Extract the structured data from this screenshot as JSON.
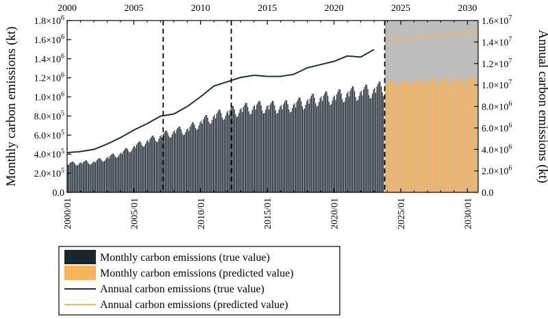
{
  "chart_data": {
    "type": "bar",
    "colors": {
      "monthly_true": "#1a2630",
      "monthly_predicted": "#f8b35a",
      "annual_true": "#16323d",
      "annual_predicted": "#f5b65b",
      "prediction_shade": "#bdbdbd",
      "event_lines": "#000000"
    },
    "top_axis": {
      "ticks": [
        "2000",
        "2005",
        "2010",
        "2015",
        "2020",
        "2025",
        "2030"
      ],
      "tick_values": [
        2000,
        2005,
        2010,
        2015,
        2020,
        2025,
        2030
      ],
      "range": [
        2000,
        2030.8
      ]
    },
    "bottom_axis": {
      "ticks": [
        "2000/01",
        "2005/01",
        "2010/01",
        "2015/01",
        "2020/01",
        "2025/01",
        "2030/01"
      ],
      "tick_values": [
        2000,
        2005,
        2010,
        2015,
        2020,
        2025,
        2030
      ],
      "range": [
        2000,
        2030.8
      ]
    },
    "left_axis": {
      "label": "Monthly carbon emissions (kt)",
      "range": [
        0,
        1800000
      ],
      "ticks": [
        {
          "value": 0,
          "label": "0.0"
        },
        {
          "value": 200000,
          "base": "2.0×10",
          "exp": "5"
        },
        {
          "value": 400000,
          "base": "4.0×10",
          "exp": "5"
        },
        {
          "value": 600000,
          "base": "6.0×10",
          "exp": "5"
        },
        {
          "value": 800000,
          "base": "8.0×10",
          "exp": "5"
        },
        {
          "value": 1000000,
          "base": "1.0×10",
          "exp": "6"
        },
        {
          "value": 1200000,
          "base": "1.2×10",
          "exp": "6"
        },
        {
          "value": 1400000,
          "base": "1.4×10",
          "exp": "6"
        },
        {
          "value": 1600000,
          "base": "1.6×10",
          "exp": "6"
        },
        {
          "value": 1800000,
          "base": "1.8×10",
          "exp": "6"
        }
      ]
    },
    "right_axis": {
      "label": "Annual carbon emissions (kt)",
      "range": [
        0,
        16000000
      ],
      "ticks": [
        {
          "value": 0,
          "label": "0.0"
        },
        {
          "value": 2000000,
          "base": "2.0×10",
          "exp": "6"
        },
        {
          "value": 4000000,
          "base": "4.0×10",
          "exp": "6"
        },
        {
          "value": 6000000,
          "base": "6.0×10",
          "exp": "6"
        },
        {
          "value": 8000000,
          "base": "8.0×10",
          "exp": "6"
        },
        {
          "value": 10000000,
          "base": "1.0×10",
          "exp": "7"
        },
        {
          "value": 12000000,
          "base": "1.2×10",
          "exp": "7"
        },
        {
          "value": 14000000,
          "base": "1.4×10",
          "exp": "7"
        },
        {
          "value": 16000000,
          "base": "1.6×10",
          "exp": "7"
        }
      ]
    },
    "event_lines_x": [
      2007.2,
      2012.3,
      2023.8
    ],
    "prediction_start": 2023.8,
    "monthly_true": {
      "start_year": 2000,
      "end_year": 2023.75,
      "anchors": [
        [
          2000,
          300000
        ],
        [
          2002,
          320000
        ],
        [
          2004,
          410000
        ],
        [
          2005,
          480000
        ],
        [
          2006,
          540000
        ],
        [
          2007,
          590000
        ],
        [
          2008,
          640000
        ],
        [
          2009,
          660000
        ],
        [
          2010,
          740000
        ],
        [
          2011,
          800000
        ],
        [
          2012,
          840000
        ],
        [
          2013,
          870000
        ],
        [
          2014,
          900000
        ],
        [
          2015,
          900000
        ],
        [
          2016,
          900000
        ],
        [
          2017,
          920000
        ],
        [
          2018,
          960000
        ],
        [
          2019,
          990000
        ],
        [
          2020,
          1000000
        ],
        [
          2021,
          1040000
        ],
        [
          2022,
          1050000
        ],
        [
          2023,
          1080000
        ],
        [
          2023.75,
          1100000
        ]
      ]
    },
    "monthly_predicted": {
      "start_year": 2023.8,
      "end_year": 2030.8,
      "anchors": [
        [
          2023.8,
          1150000
        ],
        [
          2030.8,
          1190000
        ]
      ]
    },
    "series": [
      {
        "name": "Annual carbon emissions (true value)",
        "x": [
          2000,
          2001,
          2002,
          2003,
          2004,
          2005,
          2006,
          2007,
          2008,
          2009,
          2010,
          2011,
          2012,
          2013,
          2014,
          2015,
          2016,
          2017,
          2018,
          2019,
          2020,
          2021,
          2022,
          2023
        ],
        "values": [
          3700000,
          3800000,
          4000000,
          4500000,
          5100000,
          5800000,
          6400000,
          7100000,
          7300000,
          8000000,
          8900000,
          9900000,
          10300000,
          10700000,
          10900000,
          10800000,
          10800000,
          11000000,
          11600000,
          11900000,
          12200000,
          12700000,
          12600000,
          13300000
        ]
      },
      {
        "name": "Annual carbon emissions (predicted value)",
        "x": [
          2024,
          2025,
          2026,
          2027,
          2028,
          2029,
          2030,
          2030.8
        ],
        "values": [
          14100000,
          14200000,
          14350000,
          14500000,
          14650000,
          14750000,
          14900000,
          15000000
        ]
      }
    ],
    "legend": {
      "position": "bottom-left",
      "items": [
        {
          "label": "Monthly carbon emissions (true value)",
          "swatch": "box",
          "color": "#1a2630"
        },
        {
          "label": "Monthly carbon emissions (predicted value)",
          "swatch": "box",
          "color": "#f8b35a"
        },
        {
          "label": "Annual carbon emissions (true value)",
          "swatch": "line",
          "color": "#16323d"
        },
        {
          "label": "Annual carbon emissions (predicted value)",
          "swatch": "line",
          "color": "#f5b65b"
        }
      ]
    },
    "grid": false
  }
}
